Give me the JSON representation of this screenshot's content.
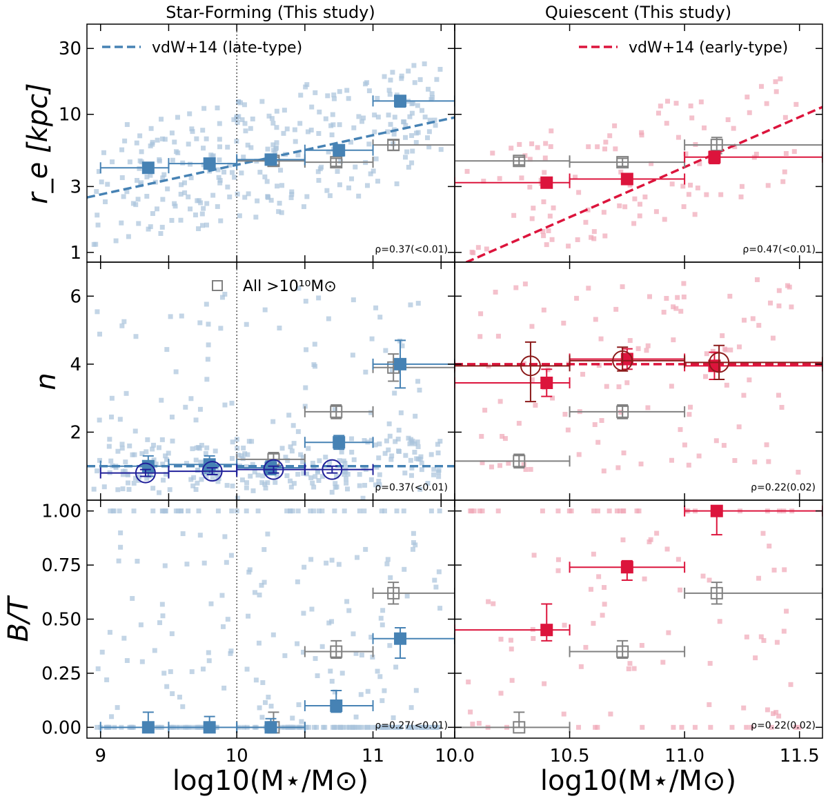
{
  "figure": {
    "col_titles": [
      "Star-Forming (This study)",
      "Quiescent (This study)"
    ],
    "x_label": "log10(M⋆/M⊙)",
    "y_labels": [
      "r_e [kpc]",
      "n",
      "B/T"
    ],
    "colors": {
      "sf": "#4682b4",
      "sf_light": "#a9c3dc",
      "q": "#dc143c",
      "q_light": "#f0a6b6",
      "all": "#808080",
      "sf_circle": "#1f1f99",
      "q_circle": "#8b1a1a"
    }
  },
  "chart_data": [
    {
      "id": "sf_re",
      "type": "scatter",
      "column": "Star-Forming",
      "ylabel": "r_e [kpc]",
      "yscale": "log",
      "xlim": [
        8.9,
        11.6
      ],
      "ylim": [
        0.85,
        45
      ],
      "xticks": [
        9,
        9.5,
        10,
        10.5,
        11,
        11.5
      ],
      "xtick_labels": [
        "9",
        "",
        "10",
        "",
        "11",
        ""
      ],
      "yticks": [
        1,
        3,
        10,
        30
      ],
      "ytick_labels": [
        "1",
        "3",
        "10",
        "30"
      ],
      "ref_line": {
        "label": "vdW+14 (late-type)",
        "x": [
          8.9,
          11.6
        ],
        "y": [
          2.5,
          9.5
        ],
        "style": "dashed"
      },
      "binned": [
        {
          "x": 9.35,
          "y": 4.1,
          "xerr": [
            0.35,
            0.15
          ],
          "yerr": [
            0.3,
            0.3
          ]
        },
        {
          "x": 9.8,
          "y": 4.4,
          "xerr": [
            0.3,
            0.2
          ],
          "yerr": [
            0.3,
            0.3
          ]
        },
        {
          "x": 10.25,
          "y": 4.7,
          "xerr": [
            0.25,
            0.25
          ],
          "yerr": [
            0.3,
            0.3
          ]
        },
        {
          "x": 10.75,
          "y": 5.5,
          "xerr": [
            0.25,
            0.25
          ],
          "yerr": [
            0.5,
            0.5
          ]
        },
        {
          "x": 11.2,
          "y": 12.5,
          "xerr": [
            0.2,
            0.4
          ],
          "yerr": [
            1.2,
            1.2
          ]
        }
      ],
      "all_mass": [
        {
          "x": 10.27,
          "y": 4.6,
          "xerr": [
            0.27,
            0.23
          ],
          "yerr": [
            0.3,
            0.3
          ]
        },
        {
          "x": 10.73,
          "y": 4.5,
          "xerr": [
            0.23,
            0.27
          ],
          "yerr": [
            0.3,
            0.3
          ]
        },
        {
          "x": 11.15,
          "y": 6.0,
          "xerr": [
            0.15,
            0.45
          ],
          "yerr": [
            0.5,
            0.5
          ]
        }
      ],
      "rho_text": "ρ=0.37(<0.01)"
    },
    {
      "id": "q_re",
      "type": "scatter",
      "column": "Quiescent",
      "ylabel": "r_e [kpc]",
      "yscale": "log",
      "xlim": [
        10.0,
        11.6
      ],
      "ylim": [
        0.85,
        45
      ],
      "xticks": [
        10.0,
        10.5,
        11.0,
        11.5
      ],
      "xtick_labels": [
        "10.0",
        "10.5",
        "11.0",
        "11.5"
      ],
      "yticks": [
        1,
        3,
        10,
        30
      ],
      "ytick_labels": [
        "",
        "",
        "",
        ""
      ],
      "ref_line": {
        "label": "vdW+14 (early-type)",
        "x": [
          10.0,
          11.6
        ],
        "y": [
          0.78,
          11.3
        ],
        "style": "dashed"
      },
      "binned": [
        {
          "x": 10.4,
          "y": 3.2,
          "xerr": [
            0.4,
            0.1
          ],
          "yerr": [
            0.25,
            0.25
          ]
        },
        {
          "x": 10.75,
          "y": 3.4,
          "xerr": [
            0.25,
            0.25
          ],
          "yerr": [
            0.3,
            0.3
          ]
        },
        {
          "x": 11.13,
          "y": 4.9,
          "xerr": [
            0.13,
            0.47
          ],
          "yerr": [
            0.5,
            0.5
          ]
        }
      ],
      "all_mass": [
        {
          "x": 10.28,
          "y": 4.6,
          "xerr": [
            0.28,
            0.22
          ],
          "yerr": [
            0.3,
            0.3
          ]
        },
        {
          "x": 10.73,
          "y": 4.5,
          "xerr": [
            0.23,
            0.27
          ],
          "yerr": [
            0.3,
            0.3
          ]
        },
        {
          "x": 11.14,
          "y": 6.0,
          "xerr": [
            0.14,
            0.46
          ],
          "yerr": [
            0.8,
            0.8
          ]
        }
      ],
      "rho_text": "ρ=0.47(<0.01)"
    },
    {
      "id": "sf_n",
      "type": "scatter",
      "column": "Star-Forming",
      "ylabel": "n",
      "yscale": "linear",
      "xlim": [
        8.9,
        11.6
      ],
      "ylim": [
        0,
        7
      ],
      "xticks": [
        9,
        9.5,
        10,
        10.5,
        11,
        11.5
      ],
      "xtick_labels": [
        "9",
        "",
        "10",
        "",
        "11",
        ""
      ],
      "yticks": [
        2,
        4,
        6
      ],
      "ytick_labels": [
        "2",
        "4",
        "6"
      ],
      "ref_line": {
        "x": [
          8.9,
          11.6
        ],
        "y": [
          1.0,
          1.0
        ],
        "style": "dashed"
      },
      "binned": [
        {
          "x": 9.35,
          "y": 1.0,
          "xerr": [
            0.35,
            0.15
          ],
          "yerr": [
            0.3,
            0.3
          ]
        },
        {
          "x": 9.8,
          "y": 1.05,
          "xerr": [
            0.3,
            0.2
          ],
          "yerr": [
            0.25,
            0.25
          ]
        },
        {
          "x": 10.25,
          "y": 0.95,
          "xerr": [
            0.25,
            0.25
          ],
          "yerr": [
            0.2,
            0.2
          ]
        },
        {
          "x": 10.75,
          "y": 1.7,
          "xerr": [
            0.25,
            0.25
          ],
          "yerr": [
            0.2,
            0.2
          ]
        },
        {
          "x": 11.2,
          "y": 4.0,
          "xerr": [
            0.2,
            0.4
          ],
          "yerr": [
            0.7,
            0.7
          ]
        }
      ],
      "circles": [
        {
          "x": 9.33,
          "y": 0.8,
          "xerr": [
            0.33,
            0.17
          ],
          "yerr": [
            0.1,
            0.1
          ]
        },
        {
          "x": 9.82,
          "y": 0.85,
          "xerr": [
            0.32,
            0.18
          ],
          "yerr": [
            0.1,
            0.1
          ]
        },
        {
          "x": 10.27,
          "y": 0.9,
          "xerr": [
            0.27,
            0.23
          ],
          "yerr": [
            0.1,
            0.1
          ]
        },
        {
          "x": 10.7,
          "y": 0.9,
          "xerr": [
            0.2,
            0.3
          ],
          "yerr": [
            0.1,
            0.1
          ]
        }
      ],
      "all_mass": [
        {
          "x": 10.27,
          "y": 1.2,
          "xerr": [
            0.27,
            0.23
          ],
          "yerr": [
            0.2,
            0.2
          ]
        },
        {
          "x": 10.73,
          "y": 2.6,
          "xerr": [
            0.23,
            0.27
          ],
          "yerr": [
            0.2,
            0.2
          ]
        },
        {
          "x": 11.15,
          "y": 3.9,
          "xerr": [
            0.15,
            0.45
          ],
          "yerr": [
            0.4,
            0.4
          ]
        }
      ],
      "legend_all": "All >10¹⁰M⊙",
      "rho_text": "ρ=0.37(<0.01)"
    },
    {
      "id": "q_n",
      "type": "scatter",
      "column": "Quiescent",
      "ylabel": "n",
      "yscale": "linear",
      "xlim": [
        10.0,
        11.6
      ],
      "ylim": [
        0,
        7
      ],
      "xticks": [
        10.0,
        10.5,
        11.0,
        11.5
      ],
      "xtick_labels": [
        "10.0",
        "10.5",
        "11.0",
        "11.5"
      ],
      "yticks": [
        2,
        4,
        6
      ],
      "ytick_labels": [
        "",
        "",
        ""
      ],
      "ref_line": {
        "x": [
          10.0,
          11.6
        ],
        "y": [
          4.0,
          4.0
        ],
        "style": "dashed"
      },
      "binned": [
        {
          "x": 10.4,
          "y": 3.45,
          "xerr": [
            0.4,
            0.1
          ],
          "yerr": [
            0.4,
            0.4
          ]
        },
        {
          "x": 10.75,
          "y": 4.15,
          "xerr": [
            0.25,
            0.25
          ],
          "yerr": [
            0.3,
            0.3
          ]
        },
        {
          "x": 11.13,
          "y": 3.95,
          "xerr": [
            0.13,
            0.47
          ],
          "yerr": [
            0.4,
            0.4
          ]
        }
      ],
      "circles": [
        {
          "x": 10.33,
          "y": 3.95,
          "xerr": [
            0.33,
            0.17
          ],
          "yerr": [
            1.05,
            0.7
          ]
        },
        {
          "x": 10.73,
          "y": 4.1,
          "xerr": [
            0.23,
            0.27
          ],
          "yerr": [
            0.3,
            0.4
          ]
        },
        {
          "x": 11.15,
          "y": 4.05,
          "xerr": [
            0.15,
            0.45
          ],
          "yerr": [
            0.5,
            0.5
          ]
        }
      ],
      "all_mass": [
        {
          "x": 10.28,
          "y": 1.15,
          "xerr": [
            0.28,
            0.22
          ],
          "yerr": [
            0.2,
            0.2
          ]
        },
        {
          "x": 10.73,
          "y": 2.6,
          "xerr": [
            0.23,
            0.27
          ],
          "yerr": [
            0.2,
            0.2
          ]
        }
      ],
      "rho_text": "ρ=0.22(0.02)"
    },
    {
      "id": "sf_bt",
      "type": "scatter",
      "column": "Star-Forming",
      "ylabel": "B/T",
      "yscale": "linear",
      "xlim": [
        8.9,
        11.6
      ],
      "ylim": [
        -0.05,
        1.05
      ],
      "xticks": [
        9,
        9.5,
        10,
        10.5,
        11,
        11.5
      ],
      "xtick_labels": [
        "9",
        "",
        "10",
        "",
        "11",
        ""
      ],
      "yticks": [
        0.0,
        0.25,
        0.5,
        0.75,
        1.0
      ],
      "ytick_labels": [
        "0.00",
        "0.25",
        "0.50",
        "0.75",
        "1.00"
      ],
      "binned": [
        {
          "x": 9.35,
          "y": 0.0,
          "xerr": [
            0.35,
            0.15
          ],
          "yerr": [
            0.0,
            0.07
          ]
        },
        {
          "x": 9.8,
          "y": 0.0,
          "xerr": [
            0.3,
            0.2
          ],
          "yerr": [
            0.0,
            0.05
          ]
        },
        {
          "x": 10.25,
          "y": 0.0,
          "xerr": [
            0.25,
            0.25
          ],
          "yerr": [
            0.0,
            0.04
          ]
        },
        {
          "x": 10.73,
          "y": 0.1,
          "xerr": [
            0.23,
            0.27
          ],
          "yerr": [
            0.03,
            0.07
          ]
        },
        {
          "x": 11.2,
          "y": 0.41,
          "xerr": [
            0.2,
            0.4
          ],
          "yerr": [
            0.09,
            0.05
          ]
        }
      ],
      "all_mass": [
        {
          "x": 10.27,
          "y": 0.0,
          "xerr": [
            0.27,
            0.23
          ],
          "yerr": [
            0.0,
            0.07
          ]
        },
        {
          "x": 10.73,
          "y": 0.35,
          "xerr": [
            0.23,
            0.27
          ],
          "yerr": [
            0.03,
            0.05
          ]
        },
        {
          "x": 11.15,
          "y": 0.62,
          "xerr": [
            0.15,
            0.45
          ],
          "yerr": [
            0.05,
            0.05
          ]
        }
      ],
      "rho_text": "ρ=0.27(<0.01)"
    },
    {
      "id": "q_bt",
      "type": "scatter",
      "column": "Quiescent",
      "ylabel": "B/T",
      "yscale": "linear",
      "xlim": [
        10.0,
        11.6
      ],
      "ylim": [
        -0.05,
        1.05
      ],
      "xticks": [
        10.0,
        10.5,
        11.0,
        11.5
      ],
      "xtick_labels": [
        "10.0",
        "10.5",
        "11.0",
        "11.5"
      ],
      "yticks": [
        0.0,
        0.25,
        0.5,
        0.75,
        1.0
      ],
      "ytick_labels": [
        "",
        "",
        "",
        "",
        ""
      ],
      "binned": [
        {
          "x": 10.4,
          "y": 0.45,
          "xerr": [
            0.4,
            0.1
          ],
          "yerr": [
            0.05,
            0.12
          ]
        },
        {
          "x": 10.75,
          "y": 0.74,
          "xerr": [
            0.25,
            0.25
          ],
          "yerr": [
            0.06,
            0.03
          ]
        },
        {
          "x": 11.14,
          "y": 1.0,
          "xerr": [
            0.14,
            0.46
          ],
          "yerr": [
            0.11,
            0.0
          ]
        }
      ],
      "all_mass": [
        {
          "x": 10.28,
          "y": 0.0,
          "xerr": [
            0.28,
            0.22
          ],
          "yerr": [
            0.0,
            0.07
          ]
        },
        {
          "x": 10.73,
          "y": 0.35,
          "xerr": [
            0.23,
            0.27
          ],
          "yerr": [
            0.03,
            0.05
          ]
        },
        {
          "x": 11.14,
          "y": 0.62,
          "xerr": [
            0.14,
            0.46
          ],
          "yerr": [
            0.05,
            0.05
          ]
        }
      ],
      "rho_text": "ρ=0.22(0.02)"
    }
  ]
}
